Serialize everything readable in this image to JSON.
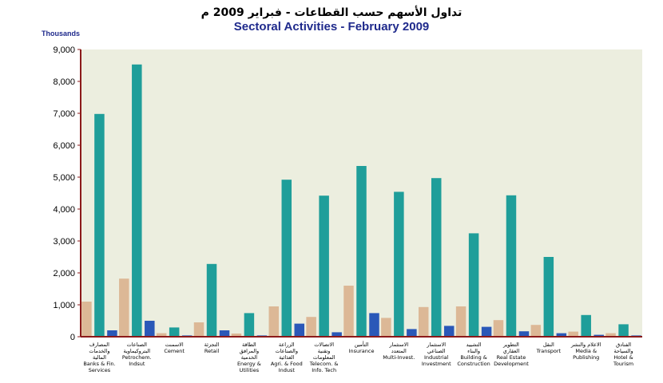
{
  "chart_data": {
    "type": "bar",
    "title_ar": "تداول الأسهم حسب القطاعات - فبراير 2009 م",
    "title": "Sectoral Activities - February 2009",
    "unit_label": "Thousands",
    "ylim": [
      0,
      9000
    ],
    "yticks": [
      "0",
      "1,000",
      "2,000",
      "3,000",
      "4,000",
      "5,000",
      "6,000",
      "7,000",
      "8,000",
      "9,000"
    ],
    "grid": false,
    "legend": "none",
    "categories": [
      {
        "ar": "المصارف والخدمات المالية",
        "en": "Banks & Fin. Services"
      },
      {
        "ar": "الصناعات البتروكيماوية",
        "en": "Petrochem. Indsut"
      },
      {
        "ar": "الاسمنت",
        "en": "Cement"
      },
      {
        "ar": "التجزئة",
        "en": "Retail"
      },
      {
        "ar": "الطاقة والمرافق الخدمية",
        "en": "Energy & Utilities"
      },
      {
        "ar": "الزراعة والصناعات الغذائية",
        "en": "Agri. & Food Indust"
      },
      {
        "ar": "الاتصالات وتقنية المعلومات",
        "en": "Telecom. & Info. Tech"
      },
      {
        "ar": "التأمين",
        "en": "Insurance"
      },
      {
        "ar": "الاستثمار المتعدد",
        "en": "Multi-Invest."
      },
      {
        "ar": "الاستثمار الصناعي",
        "en": "Industrial Investment"
      },
      {
        "ar": "التشييد والبناء",
        "en": "Building & Construction"
      },
      {
        "ar": "التطوير العقاري",
        "en": "Real Estate Development"
      },
      {
        "ar": "النقل",
        "en": "Transport"
      },
      {
        "ar": "الاعلام والنشر",
        "en": "Media & Publishing"
      },
      {
        "ar": "الفنادق والسياحة",
        "en": "Hotel & Tourism"
      }
    ],
    "series": [
      {
        "values": [
          1100,
          1820,
          110,
          450,
          100,
          950,
          620,
          1600,
          590,
          930,
          950,
          520,
          370,
          160,
          110
        ]
      },
      {
        "values": [
          6980,
          8530,
          290,
          2280,
          740,
          4920,
          4420,
          5350,
          4540,
          4970,
          3240,
          4430,
          2500,
          680,
          390
        ]
      },
      {
        "values": [
          200,
          500,
          40,
          200,
          40,
          410,
          140,
          740,
          240,
          340,
          310,
          170,
          110,
          60,
          40
        ]
      }
    ],
    "colors": {
      "series": [
        "#dcb896",
        "#1f9e9a",
        "#2a58b8"
      ],
      "plot_bg": "#eceedf",
      "axis": "#8b1a1a"
    }
  }
}
